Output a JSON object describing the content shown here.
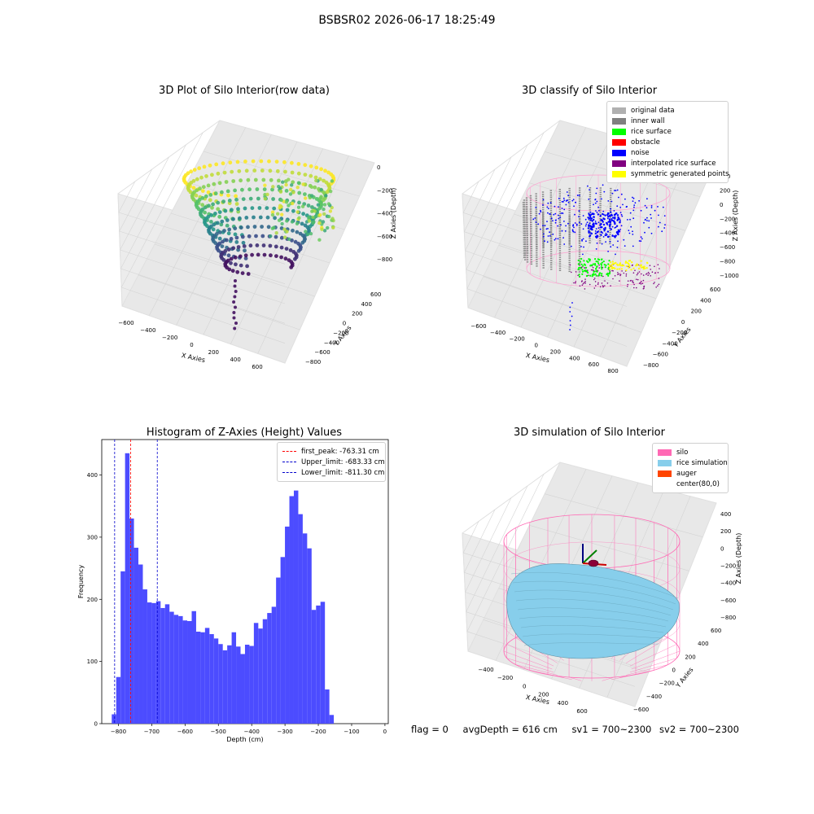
{
  "figure": {
    "title": "BSBSR02 2026-06-17 18:25:49"
  },
  "colors": {
    "histogram": "#4c4cff",
    "peak_line": "#ff0000",
    "limit_line": "#0000cc",
    "pane": "#f2f2f2",
    "grid": "#d4d4d4"
  },
  "chart_data": [
    {
      "type": "scatter",
      "dimension": "3d",
      "title": "3D Plot of Silo Interior(row data)",
      "xlabel": "X Axies",
      "ylabel": "Y Axies",
      "zlabel": "Z Axies (Depth)",
      "x_ticks": [
        "−600",
        "−400",
        "−200",
        "0",
        "200",
        "400",
        "600"
      ],
      "y_ticks": [
        "−800",
        "−600",
        "−400",
        "−200",
        "0",
        "200",
        "400",
        "600"
      ],
      "z_ticks": [
        "0",
        "−200",
        "−400",
        "−600",
        "−800"
      ],
      "xlim": [
        -650,
        650
      ],
      "ylim": [
        -850,
        650
      ],
      "zlim": [
        -900,
        0
      ],
      "colormap": "viridis"
    },
    {
      "type": "scatter",
      "dimension": "3d",
      "title": "3D classify of Silo Interior",
      "xlabel": "X Axies",
      "ylabel": "Y Axies",
      "zlabel": "Z Axies (Depth)",
      "x_ticks": [
        "−600",
        "−400",
        "−200",
        "0",
        "200",
        "400",
        "600",
        "800"
      ],
      "y_ticks": [
        "−800",
        "−600",
        "−400",
        "−200",
        "0",
        "200",
        "400",
        "600"
      ],
      "z_ticks": [
        "400",
        "200",
        "0",
        "−200",
        "−400",
        "−600",
        "−800",
        "−1000"
      ],
      "xlim": [
        -700,
        850
      ],
      "ylim": [
        -850,
        650
      ],
      "zlim": [
        -1000,
        400
      ],
      "legend": [
        {
          "label": "original data",
          "color": "#b0b0b0"
        },
        {
          "label": "inner wall",
          "color": "#808080"
        },
        {
          "label": "rice surface",
          "color": "#00ff00"
        },
        {
          "label": "obstacle",
          "color": "#ff0000"
        },
        {
          "label": "noise",
          "color": "#0000ff"
        },
        {
          "label": "interpolated rice surface",
          "color": "#800080"
        },
        {
          "label": "symmetric generated points",
          "color": "#ffff00"
        }
      ],
      "legend_position": "upper-right"
    },
    {
      "type": "bar",
      "title": "Histogram of Z-Axies (Height) Values",
      "xlabel": "Depth (cm)",
      "ylabel": "Frequency",
      "bin_start": -820,
      "bin_width": 13.33,
      "values": [
        15,
        75,
        245,
        435,
        330,
        283,
        256,
        216,
        195,
        194,
        197,
        186,
        192,
        180,
        175,
        173,
        166,
        165,
        181,
        148,
        147,
        154,
        144,
        137,
        128,
        118,
        126,
        147,
        124,
        112,
        127,
        125,
        162,
        153,
        168,
        178,
        188,
        235,
        268,
        317,
        366,
        375,
        337,
        306,
        282,
        183,
        190,
        196,
        55,
        14
      ],
      "xlim": [
        -850,
        10
      ],
      "ylim": [
        0,
        457
      ],
      "x_ticks": [
        -800,
        -700,
        -600,
        -500,
        -400,
        -300,
        -200,
        -100,
        0
      ],
      "y_ticks": [
        0,
        100,
        200,
        300,
        400
      ],
      "vlines": [
        {
          "label": "first_peak: -763.31 cm",
          "x": -763.31,
          "color": "#ff0000"
        },
        {
          "label": "Upper_limit: -683.33 cm",
          "x": -683.33,
          "color": "#0000cc"
        },
        {
          "label": "Lower_limit: -811.30 cm",
          "x": -811.3,
          "color": "#0000cc"
        }
      ],
      "legend_position": "upper-right"
    },
    {
      "type": "surface",
      "dimension": "3d",
      "title": "3D simulation of Silo Interior",
      "xlabel": "X Axies",
      "ylabel": "Y Axies",
      "zlabel": "Z Axies (Depth)",
      "x_ticks": [
        "−400",
        "−200",
        "0",
        "200",
        "400",
        "600"
      ],
      "y_ticks": [
        "−600",
        "−400",
        "−200",
        "0",
        "200",
        "400",
        "600"
      ],
      "z_ticks": [
        "400",
        "200",
        "0",
        "−200",
        "−400",
        "−600",
        "−800"
      ],
      "xlim": [
        -550,
        700
      ],
      "ylim": [
        -700,
        650
      ],
      "zlim": [
        -900,
        450
      ],
      "legend": [
        {
          "label": "silo",
          "color": "#ff69b4"
        },
        {
          "label": "rice simulation",
          "color": "#87ceeb"
        },
        {
          "label": "auger",
          "color": "#ff4500"
        },
        {
          "label": "center(80,0)",
          "color": ""
        }
      ],
      "legend_position": "upper-right"
    }
  ],
  "status": {
    "flag": "flag = 0",
    "avg_depth": "avgDepth = 616 cm",
    "sv1": "sv1 = 700~2300",
    "sv2": "sv2 = 700~2300"
  }
}
